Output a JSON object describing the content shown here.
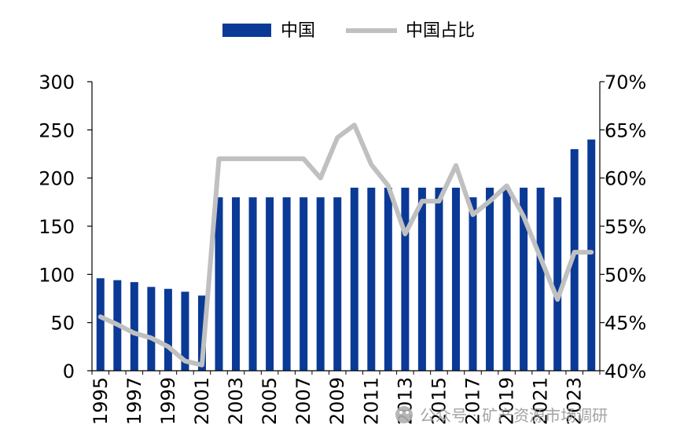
{
  "chart_data": {
    "type": "bar",
    "categories": [
      1995,
      1996,
      1997,
      1998,
      1999,
      2000,
      2001,
      2002,
      2003,
      2004,
      2005,
      2006,
      2007,
      2008,
      2009,
      2010,
      2011,
      2012,
      2013,
      2014,
      2015,
      2016,
      2017,
      2018,
      2019,
      2020,
      2021,
      2022,
      2023,
      2024
    ],
    "x_tick_labels": [
      "1995",
      "1997",
      "1999",
      "2001",
      "2003",
      "2005",
      "2007",
      "2009",
      "2011",
      "2013",
      "2015",
      "2017",
      "2019",
      "2021",
      "2023"
    ],
    "series": [
      {
        "name": "中国",
        "type": "bar",
        "axis": "left",
        "color": "#0a3a96",
        "values": [
          96,
          94,
          92,
          87,
          85,
          82,
          78,
          180,
          180,
          180,
          180,
          180,
          180,
          180,
          180,
          190,
          190,
          190,
          190,
          190,
          190,
          190,
          180,
          190,
          190,
          190,
          190,
          180,
          230,
          240
        ]
      },
      {
        "name": "中国占比",
        "type": "line",
        "axis": "right",
        "color": "#c0c0c0",
        "values": [
          45.6,
          44.8,
          43.9,
          43.4,
          42.5,
          41.0,
          40.6,
          62.0,
          62.0,
          62.0,
          62.0,
          62.0,
          62.0,
          60.0,
          64.2,
          65.5,
          61.4,
          59.2,
          54.2,
          57.6,
          57.6,
          61.3,
          56.2,
          57.6,
          59.2,
          56.0,
          51.7,
          47.4,
          52.3,
          52.3
        ]
      }
    ],
    "y_left": {
      "min": 0,
      "max": 300,
      "ticks": [
        0,
        50,
        100,
        150,
        200,
        250,
        300
      ],
      "tick_labels": [
        "0",
        "50",
        "100",
        "150",
        "200",
        "250",
        "300"
      ]
    },
    "y_right": {
      "min": 40,
      "max": 70,
      "ticks": [
        40,
        45,
        50,
        55,
        60,
        65,
        70
      ],
      "tick_labels": [
        "40%",
        "45%",
        "50%",
        "55%",
        "60%",
        "65%",
        "70%"
      ]
    },
    "legend_position": "top-center",
    "grid": false
  },
  "watermark": {
    "text": "公众号 · 矿产资源市场调研",
    "icon": "wechat-icon"
  }
}
